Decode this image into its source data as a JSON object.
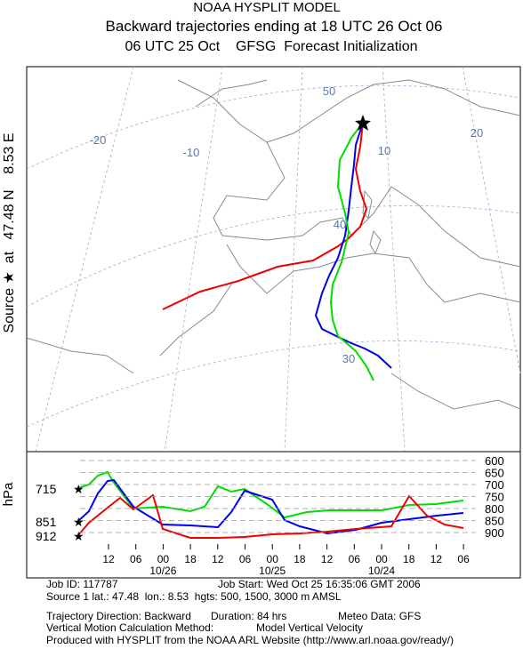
{
  "header": {
    "title": "NOAA HYSPLIT MODEL",
    "subtitle": "Backward trajectories ending at 18 UTC 26 Oct 06",
    "info": "06 UTC 25 Oct    GFSG  Forecast Initialization"
  },
  "map": {
    "source_label": "Source ★  at   47.48 N    8.53 E",
    "grid_labels": [
      -20,
      -10,
      10,
      20,
      50,
      40,
      30
    ]
  },
  "profile": {
    "axis_label": "hPa",
    "pressure_levels": [
      600,
      650,
      700,
      750,
      800,
      850,
      900
    ],
    "start_levels": [
      715,
      851,
      912
    ],
    "time_ticks": [
      "12",
      "06",
      "00",
      "18",
      "12",
      "06",
      "00",
      "18",
      "12",
      "06",
      "00",
      "18",
      "12",
      "06"
    ],
    "date_labels": [
      "10/26",
      "10/25",
      "10/24"
    ]
  },
  "footer": {
    "job_id": "Job ID: 117787",
    "job_start": "Job Start: Wed Oct 25 16:35:06 GMT 2006",
    "source": "Source 1 lat.: 47.48  lon.: 8.53  hgts: 500, 1500, 3000 m AMSL",
    "direction": "Trajectory Direction: Backward",
    "duration": "Duration: 84 hrs",
    "meteo": "Meteo Data: GFS",
    "vertical_method": "Vertical Motion Calculation Method:",
    "vertical_value": "Model Vertical Velocity",
    "produced": "Produced with HYSPLIT from the NOAA ARL Website (http://www.arl.noaa.gov/ready/)"
  }
}
